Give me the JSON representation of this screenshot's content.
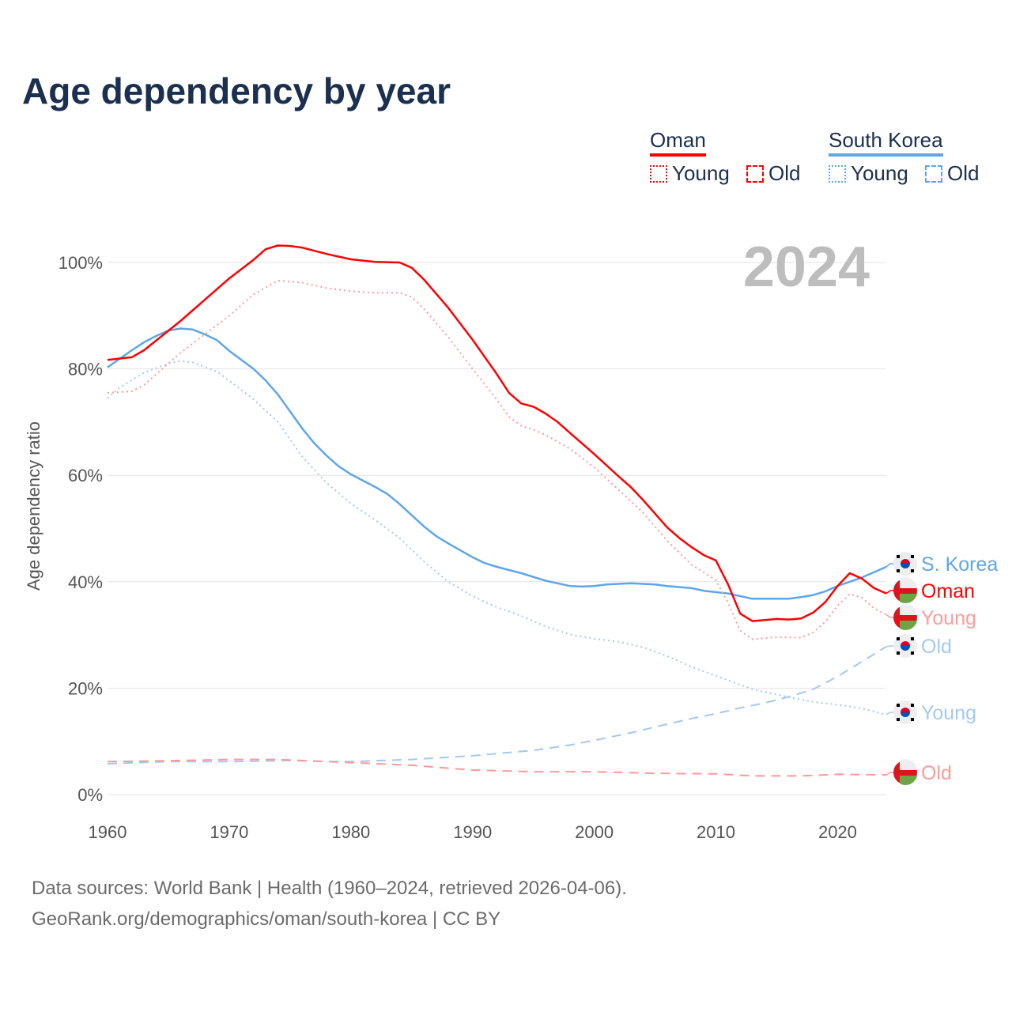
{
  "chart_data": {
    "type": "line",
    "title": "Age dependency by year",
    "xlabel": "",
    "ylabel": "Age dependency ratio",
    "xlim": [
      1960,
      2024
    ],
    "ylim": [
      0,
      110
    ],
    "y_ticks": [
      "0%",
      "20%",
      "40%",
      "60%",
      "80%",
      "100%"
    ],
    "y_tick_values": [
      0,
      20,
      40,
      60,
      80,
      100
    ],
    "x_ticks": [
      "1960",
      "1970",
      "1980",
      "1990",
      "2000",
      "2010",
      "2020"
    ],
    "x_tick_values": [
      1960,
      1970,
      1980,
      1990,
      2000,
      2010,
      2020
    ],
    "year_watermark": "2024",
    "grid": true,
    "legend": {
      "position": "top-right",
      "groups": [
        {
          "name": "Oman",
          "color": "#ff0000",
          "items": [
            "Young",
            "Old"
          ]
        },
        {
          "name": "South Korea",
          "color": "#5ea6ea",
          "items": [
            "Young",
            "Old"
          ]
        }
      ]
    },
    "series": [
      {
        "name": "S. Korea",
        "country": "South Korea",
        "kind": "Total",
        "color": "#5ea6ea",
        "style": "solid",
        "points": [
          [
            1960,
            80.3
          ],
          [
            1962,
            83.5
          ],
          [
            1963,
            85
          ],
          [
            1964,
            86.2
          ],
          [
            1965,
            87.2
          ],
          [
            1966,
            87.6
          ],
          [
            1967,
            87.4
          ],
          [
            1968,
            86.5
          ],
          [
            1969,
            85.4
          ],
          [
            1970,
            83.4
          ],
          [
            1972,
            80
          ],
          [
            1973,
            77.8
          ],
          [
            1974,
            75.2
          ],
          [
            1975,
            72
          ],
          [
            1976,
            68.8
          ],
          [
            1977,
            66
          ],
          [
            1978,
            63.7
          ],
          [
            1979,
            61.7
          ],
          [
            1980,
            60.2
          ],
          [
            1982,
            57.8
          ],
          [
            1983,
            56.5
          ],
          [
            1984,
            54.6
          ],
          [
            1986,
            50.4
          ],
          [
            1987,
            48.6
          ],
          [
            1988,
            47.2
          ],
          [
            1990,
            44.6
          ],
          [
            1991,
            43.5
          ],
          [
            1992,
            42.8
          ],
          [
            1994,
            41.6
          ],
          [
            1996,
            40.2
          ],
          [
            1998,
            39.2
          ],
          [
            1999,
            39.1
          ],
          [
            2000,
            39.2
          ],
          [
            2001,
            39.5
          ],
          [
            2003,
            39.7
          ],
          [
            2005,
            39.5
          ],
          [
            2006,
            39.2
          ],
          [
            2008,
            38.8
          ],
          [
            2009,
            38.3
          ],
          [
            2011,
            37.8
          ],
          [
            2013,
            36.8
          ],
          [
            2016,
            36.8
          ],
          [
            2017,
            37.1
          ],
          [
            2018,
            37.5
          ],
          [
            2019,
            38.2
          ],
          [
            2020,
            39.2
          ],
          [
            2022,
            40.8
          ],
          [
            2024,
            42.8
          ]
        ]
      },
      {
        "name": "Oman",
        "country": "Oman",
        "kind": "Total",
        "color": "#ff0000",
        "style": "solid",
        "points": [
          [
            1960,
            81.7
          ],
          [
            1962,
            82.2
          ],
          [
            1963,
            83.5
          ],
          [
            1966,
            89
          ],
          [
            1970,
            97
          ],
          [
            1972,
            100.5
          ],
          [
            1973,
            102.5
          ],
          [
            1974,
            103.2
          ],
          [
            1975,
            103.1
          ],
          [
            1976,
            102.8
          ],
          [
            1978,
            101.6
          ],
          [
            1980,
            100.6
          ],
          [
            1982,
            100.1
          ],
          [
            1984,
            100
          ],
          [
            1985,
            99
          ],
          [
            1986,
            96.8
          ],
          [
            1988,
            91.5
          ],
          [
            1990,
            85.5
          ],
          [
            1992,
            79
          ],
          [
            1993,
            75.5
          ],
          [
            1994,
            73.5
          ],
          [
            1995,
            72.9
          ],
          [
            1996,
            71.6
          ],
          [
            1997,
            70
          ],
          [
            1998,
            68
          ],
          [
            2000,
            64
          ],
          [
            2002,
            59.8
          ],
          [
            2003,
            57.8
          ],
          [
            2004,
            55.4
          ],
          [
            2006,
            50.2
          ],
          [
            2007,
            48.2
          ],
          [
            2008,
            46.5
          ],
          [
            2009,
            45
          ],
          [
            2010,
            44
          ],
          [
            2011,
            39.5
          ],
          [
            2012,
            34
          ],
          [
            2013,
            32.6
          ],
          [
            2015,
            33
          ],
          [
            2016,
            32.9
          ],
          [
            2017,
            33.1
          ],
          [
            2018,
            34.2
          ],
          [
            2019,
            36.2
          ],
          [
            2020,
            39.2
          ],
          [
            2021,
            41.6
          ],
          [
            2022,
            40.6
          ],
          [
            2023,
            38.8
          ],
          [
            2024,
            37.8
          ]
        ]
      },
      {
        "name": "Young",
        "country": "Oman",
        "kind": "Young",
        "color": "#ff9a9a",
        "style": "dotted",
        "points": [
          [
            1960,
            75.5
          ],
          [
            1962,
            75.8
          ],
          [
            1963,
            77
          ],
          [
            1966,
            83
          ],
          [
            1970,
            90
          ],
          [
            1972,
            94
          ],
          [
            1974,
            96.6
          ],
          [
            1976,
            96.2
          ],
          [
            1978,
            95.2
          ],
          [
            1980,
            94.6
          ],
          [
            1982,
            94.3
          ],
          [
            1984,
            94.3
          ],
          [
            1985,
            93.5
          ],
          [
            1986,
            91.3
          ],
          [
            1988,
            86
          ],
          [
            1990,
            80
          ],
          [
            1992,
            74.2
          ],
          [
            1993,
            71
          ],
          [
            1994,
            69.3
          ],
          [
            1995,
            68.6
          ],
          [
            1996,
            67.6
          ],
          [
            1998,
            65
          ],
          [
            2000,
            61.5
          ],
          [
            2002,
            57.3
          ],
          [
            2004,
            53
          ],
          [
            2006,
            47.7
          ],
          [
            2008,
            43.2
          ],
          [
            2010,
            40.3
          ],
          [
            2011,
            36
          ],
          [
            2012,
            30.8
          ],
          [
            2013,
            29.2
          ],
          [
            2015,
            29.6
          ],
          [
            2017,
            29.5
          ],
          [
            2018,
            30.5
          ],
          [
            2019,
            32.5
          ],
          [
            2020,
            35.5
          ],
          [
            2021,
            37.7
          ],
          [
            2022,
            37
          ],
          [
            2023,
            35
          ],
          [
            2024,
            33.8
          ]
        ]
      },
      {
        "name": "Old",
        "country": "South Korea",
        "kind": "Old",
        "color": "#a3c9f1",
        "style": "dashed",
        "points": [
          [
            1960,
            5.8
          ],
          [
            1965,
            6.2
          ],
          [
            1970,
            6.2
          ],
          [
            1975,
            6.4
          ],
          [
            1978,
            6.2
          ],
          [
            1980,
            6.2
          ],
          [
            1985,
            6.6
          ],
          [
            1990,
            7.3
          ],
          [
            1995,
            8.3
          ],
          [
            1998,
            9.3
          ],
          [
            2000,
            10.2
          ],
          [
            2003,
            11.6
          ],
          [
            2005,
            12.7
          ],
          [
            2008,
            14.3
          ],
          [
            2010,
            15.2
          ],
          [
            2012,
            16.3
          ],
          [
            2014,
            17.2
          ],
          [
            2016,
            18.4
          ],
          [
            2018,
            19.8
          ],
          [
            2020,
            22.2
          ],
          [
            2022,
            25
          ],
          [
            2024,
            27.8
          ]
        ]
      },
      {
        "name": "Young",
        "country": "South Korea",
        "kind": "Young",
        "color": "#a3c9f1",
        "style": "dotted",
        "points": [
          [
            1960,
            74.5
          ],
          [
            1961,
            76.5
          ],
          [
            1963,
            79.3
          ],
          [
            1965,
            81
          ],
          [
            1966,
            81.5
          ],
          [
            1967,
            81.2
          ],
          [
            1969,
            79.5
          ],
          [
            1970,
            77.8
          ],
          [
            1972,
            74.3
          ],
          [
            1974,
            70
          ],
          [
            1976,
            63.5
          ],
          [
            1978,
            58.6
          ],
          [
            1980,
            54.7
          ],
          [
            1982,
            51.6
          ],
          [
            1984,
            48.2
          ],
          [
            1986,
            43.8
          ],
          [
            1988,
            40
          ],
          [
            1990,
            37.3
          ],
          [
            1992,
            35.2
          ],
          [
            1994,
            33.6
          ],
          [
            1996,
            31.6
          ],
          [
            1998,
            30.1
          ],
          [
            2000,
            29.3
          ],
          [
            2002,
            28.7
          ],
          [
            2004,
            27.7
          ],
          [
            2006,
            26
          ],
          [
            2008,
            24
          ],
          [
            2010,
            22.3
          ],
          [
            2013,
            19.8
          ],
          [
            2016,
            18.3
          ],
          [
            2018,
            17.4
          ],
          [
            2020,
            16.9
          ],
          [
            2022,
            16.2
          ],
          [
            2024,
            15
          ]
        ]
      },
      {
        "name": "Old",
        "country": "Oman",
        "kind": "Old",
        "color": "#ff9a9a",
        "style": "dashed",
        "points": [
          [
            1960,
            6.2
          ],
          [
            1966,
            6.4
          ],
          [
            1970,
            6.6
          ],
          [
            1974,
            6.6
          ],
          [
            1978,
            6.2
          ],
          [
            1980,
            6.0
          ],
          [
            1985,
            5.5
          ],
          [
            1990,
            4.6
          ],
          [
            1995,
            4.3
          ],
          [
            2000,
            4.3
          ],
          [
            2005,
            4.0
          ],
          [
            2010,
            3.9
          ],
          [
            2013,
            3.5
          ],
          [
            2017,
            3.5
          ],
          [
            2020,
            3.8
          ],
          [
            2024,
            3.7
          ]
        ]
      }
    ]
  },
  "footer": {
    "line1": "Data sources: World Bank | Health (1960–2024, retrieved 2026-04-06).",
    "line2": "GeoRank.org/demographics/oman/south-korea | CC BY"
  }
}
